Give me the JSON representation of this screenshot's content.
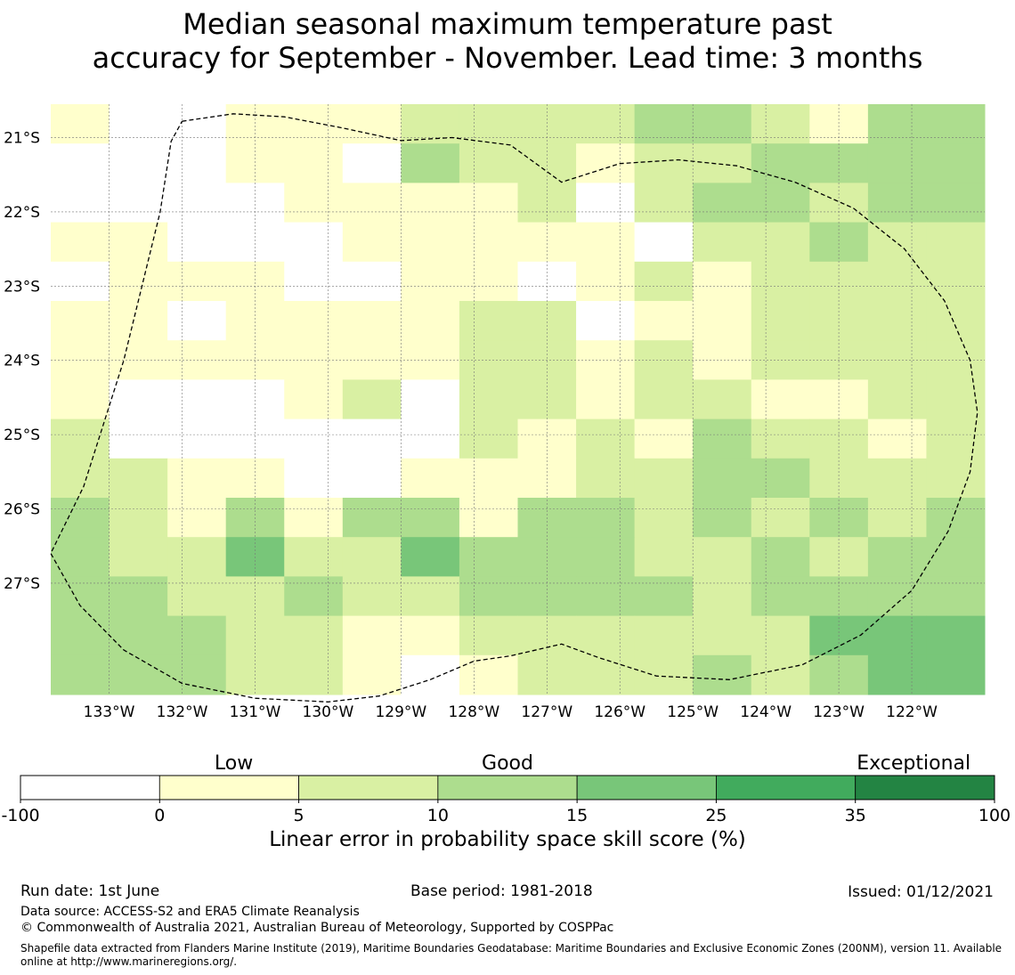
{
  "title": {
    "line1": "Median seasonal maximum temperature past",
    "line2": "accuracy for September - November. Lead time: 3 months"
  },
  "map": {
    "lon_range": [
      -133.8,
      -121.0
    ],
    "lat_range": [
      -28.5,
      -20.55
    ],
    "lon_ticks": [
      {
        "value": -133,
        "label": "133°W"
      },
      {
        "value": -132,
        "label": "132°W"
      },
      {
        "value": -131,
        "label": "131°W"
      },
      {
        "value": -130,
        "label": "130°W"
      },
      {
        "value": -129,
        "label": "129°W"
      },
      {
        "value": -128,
        "label": "128°W"
      },
      {
        "value": -127,
        "label": "127°W"
      },
      {
        "value": -126,
        "label": "126°W"
      },
      {
        "value": -125,
        "label": "125°W"
      },
      {
        "value": -124,
        "label": "124°W"
      },
      {
        "value": -123,
        "label": "123°W"
      },
      {
        "value": -122,
        "label": "122°W"
      }
    ],
    "lat_ticks": [
      {
        "value": -21,
        "label": "21°S"
      },
      {
        "value": -22,
        "label": "22°S"
      },
      {
        "value": -23,
        "label": "23°S"
      },
      {
        "value": -24,
        "label": "24°S"
      },
      {
        "value": -25,
        "label": "25°S"
      },
      {
        "value": -26,
        "label": "26°S"
      },
      {
        "value": -27,
        "label": "27°S"
      }
    ],
    "grid": true,
    "cell_size_deg": [
      0.833,
      0.555
    ],
    "cell_key": "0 = -100 to 0, 1 = 0 to 5, 2 = 5 to 10, 3 = 10 to 15, 4 = 15 to 25",
    "rows_north_to_south": [
      [
        1,
        0,
        0,
        1,
        1,
        1,
        2,
        2,
        2,
        2,
        3,
        3,
        2,
        1,
        3,
        3
      ],
      [
        0,
        0,
        0,
        1,
        1,
        0,
        3,
        2,
        2,
        1,
        2,
        2,
        3,
        3,
        3,
        3
      ],
      [
        0,
        0,
        0,
        0,
        1,
        1,
        1,
        1,
        2,
        0,
        2,
        3,
        3,
        2,
        3,
        3
      ],
      [
        1,
        1,
        0,
        0,
        0,
        1,
        1,
        1,
        1,
        1,
        0,
        2,
        2,
        3,
        2,
        2
      ],
      [
        0,
        1,
        1,
        1,
        0,
        0,
        1,
        1,
        0,
        1,
        2,
        1,
        2,
        2,
        2,
        2
      ],
      [
        1,
        1,
        0,
        1,
        1,
        1,
        1,
        2,
        2,
        0,
        1,
        1,
        2,
        2,
        2,
        2
      ],
      [
        1,
        1,
        1,
        1,
        1,
        1,
        1,
        2,
        2,
        1,
        2,
        1,
        2,
        2,
        2,
        2
      ],
      [
        1,
        0,
        0,
        0,
        1,
        2,
        0,
        2,
        2,
        1,
        2,
        2,
        1,
        1,
        2,
        2
      ],
      [
        2,
        0,
        0,
        0,
        0,
        0,
        0,
        2,
        1,
        2,
        1,
        3,
        2,
        2,
        1,
        2
      ],
      [
        2,
        2,
        1,
        1,
        0,
        0,
        1,
        1,
        1,
        2,
        2,
        3,
        3,
        2,
        2,
        2
      ],
      [
        3,
        2,
        1,
        3,
        1,
        3,
        3,
        1,
        3,
        3,
        2,
        3,
        2,
        3,
        2,
        3
      ],
      [
        3,
        2,
        2,
        4,
        2,
        2,
        4,
        3,
        3,
        3,
        2,
        2,
        3,
        2,
        3,
        3
      ],
      [
        3,
        3,
        2,
        2,
        3,
        2,
        2,
        3,
        3,
        3,
        3,
        2,
        3,
        3,
        3,
        3
      ],
      [
        3,
        3,
        3,
        2,
        2,
        1,
        1,
        2,
        2,
        2,
        2,
        2,
        2,
        4,
        4,
        4
      ],
      [
        3,
        3,
        3,
        2,
        2,
        1,
        0,
        1,
        2,
        2,
        2,
        3,
        2,
        3,
        4,
        4
      ]
    ],
    "boundary_path_lonlat": [
      [
        -132.0,
        -20.78
      ],
      [
        -131.3,
        -20.68
      ],
      [
        -130.6,
        -20.72
      ],
      [
        -129.8,
        -20.87
      ],
      [
        -129.0,
        -21.04
      ],
      [
        -128.3,
        -21.0
      ],
      [
        -127.5,
        -21.1
      ],
      [
        -126.8,
        -21.6
      ],
      [
        -126.0,
        -21.35
      ],
      [
        -125.2,
        -21.3
      ],
      [
        -124.4,
        -21.38
      ],
      [
        -123.6,
        -21.6
      ],
      [
        -122.8,
        -21.95
      ],
      [
        -122.1,
        -22.5
      ],
      [
        -121.55,
        -23.2
      ],
      [
        -121.2,
        -24.0
      ],
      [
        -121.1,
        -24.7
      ],
      [
        -121.2,
        -25.5
      ],
      [
        -121.5,
        -26.3
      ],
      [
        -122.0,
        -27.1
      ],
      [
        -122.7,
        -27.7
      ],
      [
        -123.5,
        -28.1
      ],
      [
        -124.5,
        -28.3
      ],
      [
        -125.5,
        -28.25
      ],
      [
        -126.3,
        -28.0
      ],
      [
        -126.8,
        -27.82
      ],
      [
        -127.5,
        -27.98
      ],
      [
        -128.0,
        -28.05
      ],
      [
        -128.6,
        -28.3
      ],
      [
        -129.3,
        -28.52
      ],
      [
        -130.0,
        -28.6
      ],
      [
        -131.0,
        -28.55
      ],
      [
        -132.0,
        -28.35
      ],
      [
        -132.8,
        -27.9
      ],
      [
        -133.4,
        -27.3
      ],
      [
        -133.8,
        -26.6
      ],
      [
        -133.35,
        -25.7
      ],
      [
        -132.8,
        -24.0
      ],
      [
        -132.3,
        -22.0
      ],
      [
        -132.15,
        -21.05
      ],
      [
        -132.0,
        -20.78
      ]
    ]
  },
  "colorbar": {
    "category_labels": [
      {
        "text": "Low",
        "pos": 0.219
      },
      {
        "text": "Good",
        "pos": 0.5
      },
      {
        "text": "Exceptional",
        "pos": 0.917
      }
    ],
    "bins": [
      {
        "from": "-100",
        "to": "0",
        "color": "#ffffff"
      },
      {
        "from": "0",
        "to": "5",
        "color": "#ffffcc"
      },
      {
        "from": "5",
        "to": "10",
        "color": "#d9f0a3"
      },
      {
        "from": "10",
        "to": "15",
        "color": "#addd8e"
      },
      {
        "from": "15",
        "to": "25",
        "color": "#78c679"
      },
      {
        "from": "25",
        "to": "35",
        "color": "#41ab5d"
      },
      {
        "from": "35",
        "to": "100",
        "color": "#238443"
      }
    ],
    "tick_labels": [
      "-100",
      "0",
      "5",
      "10",
      "15",
      "25",
      "35",
      "100"
    ],
    "xlabel": "Linear error in probability space skill score (%)"
  },
  "footer": {
    "run_date": "Run date: 1st June",
    "base_period": "Base period: 1981-2018",
    "issued": "Issued: 01/12/2021",
    "data_source": "Data source: ACCESS-S2 and ERA5 Climate Reanalysis",
    "copyright": "© Commonwealth of Australia 2021, Australian Bureau of Meteorology, Supported by COSPPac",
    "shapefile": "Shapefile data extracted from Flanders Marine Institute (2019), Maritime Boundaries Geodatabase: Maritime Boundaries and Exclusive Economic Zones (200NM), version 11. Available online at http://www.marineregions.org/."
  }
}
